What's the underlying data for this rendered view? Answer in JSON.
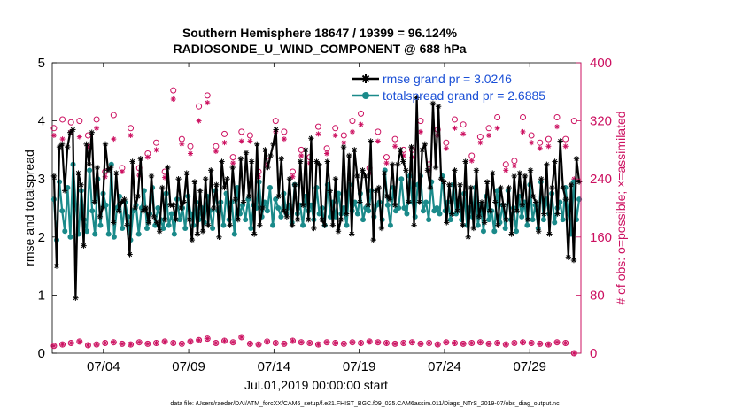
{
  "chart_data": {
    "type": "line",
    "title_line1": "Southern Hemisphere 18647 / 19399 = 96.124%",
    "title_line2": "RADIOSONDE_U_WIND_COMPONENT @ 688 hPa",
    "xlabel": "Jul.01,2019 00:00:00 start",
    "ylabel_left": "rmse and totalspread",
    "ylabel_right": "# of obs: o=possible; ×=assimilated",
    "footer": "data file: /Users/raeder/DAI/ATM_forcXX/CAM6_setup/f.e21.FHIST_BGC.f09_025.CAM6assim.011/Diags_NTrS_2019-07/obs_diag_output.nc",
    "xlim": [
      0.5,
      31.5
    ],
    "ylim_left": [
      0,
      5
    ],
    "ylim_right": [
      0,
      400
    ],
    "x_ticks": [
      3.5,
      8.5,
      13.5,
      18.5,
      23.5,
      28.5
    ],
    "x_tick_labels": [
      "07/04",
      "07/09",
      "07/14",
      "07/19",
      "07/24",
      "07/29"
    ],
    "y_ticks_left": [
      0,
      1,
      2,
      3,
      4,
      5
    ],
    "y_ticks_left_labels": [
      "0",
      "1",
      "2",
      "3",
      "4",
      "5"
    ],
    "y_ticks_right": [
      0,
      80,
      160,
      240,
      320,
      400
    ],
    "y_ticks_right_labels": [
      "0",
      "80",
      "160",
      "240",
      "320",
      "400"
    ],
    "colors": {
      "rmse": "#000000",
      "spread": "#1a8a8a",
      "obs": "#cc1060",
      "legend_text": "#1a4fd6"
    },
    "legend": [
      {
        "label": "rmse grand pr = 3.0246"
      },
      {
        "label": "totalspread grand pr = 2.6885"
      }
    ],
    "series": [
      {
        "name": "rmse",
        "values": [
          3.05,
          1.5,
          3.55,
          3.6,
          2.8,
          3.55,
          3.8,
          3.85,
          0.95,
          3.1,
          2.9,
          1.85,
          3.6,
          3.25,
          3.8,
          2.6,
          3.2,
          2.35,
          2.5,
          3.6,
          3.15,
          3.2,
          2.25,
          3.1,
          2.45,
          2.6,
          2.65,
          2.2,
          1.7,
          3.3,
          2.5,
          2.7,
          3.35,
          2.45,
          2.5,
          2.25,
          3.05,
          2.35,
          2.25,
          2.1,
          2.85,
          2.3,
          3.2,
          2.55,
          2.55,
          2.3,
          3.0,
          2.5,
          2.6,
          3.1,
          2.3,
          1.95,
          2.95,
          2.05,
          2.8,
          2.1,
          3.0,
          2.2,
          3.15,
          2.5,
          2.9,
          2.0,
          3.3,
          2.85,
          3.0,
          2.2,
          3.2,
          2.65,
          2.3,
          3.35,
          2.6,
          3.45,
          2.7,
          3.3,
          2.05,
          3.6,
          2.2,
          2.5,
          3.5,
          3.2,
          3.4,
          3.6,
          3.85,
          2.7,
          3.35,
          2.45,
          2.35,
          3.0,
          2.2,
          2.9,
          2.3,
          3.3,
          2.55,
          3.5,
          2.3,
          3.7,
          2.15,
          3.3,
          3.25,
          2.3,
          2.2,
          3.3,
          2.8,
          2.2,
          3.0,
          2.1,
          2.3,
          3.55,
          2.4,
          3.4,
          2.05,
          3.5,
          3.05,
          2.6,
          3.15,
          3.05,
          2.55,
          3.65,
          1.95,
          2.8,
          2.85,
          2.15,
          3.1,
          2.7,
          2.65,
          3.25,
          2.55,
          3.25,
          3.5,
          3.3,
          3.15,
          2.6,
          3.55,
          2.2,
          4.4,
          2.6,
          3.5,
          3.6,
          3.15,
          2.85,
          4.3,
          3.2,
          4.25,
          3.0,
          2.95,
          2.25,
          2.9,
          2.4,
          3.15,
          2.45,
          2.9,
          2.2,
          3.3,
          2.0,
          2.85,
          2.15,
          3.15,
          2.35,
          2.6,
          2.25,
          2.95,
          2.45,
          3.1,
          2.6,
          2.2,
          2.85,
          2.55,
          2.3,
          2.85,
          2.05,
          3.05,
          2.45,
          3.1,
          2.55,
          3.05,
          2.3,
          3.15,
          2.7,
          2.6,
          2.1,
          3.0,
          2.4,
          3.25,
          2.05,
          2.85,
          3.3,
          2.4,
          3.65,
          2.85,
          2.65,
          1.65,
          2.9,
          1.6,
          3.35,
          2.95
        ]
      },
      {
        "name": "totalspread",
        "values": [
          2.65,
          1.95,
          2.95,
          2.45,
          2.1,
          2.85,
          2.0,
          3.25,
          2.55,
          2.05,
          2.8,
          2.3,
          2.1,
          3.15,
          2.45,
          2.05,
          3.0,
          2.2,
          2.75,
          2.55,
          2.05,
          3.25,
          2.0,
          2.5,
          2.7,
          2.15,
          2.6,
          2.35,
          1.95,
          2.45,
          2.55,
          2.05,
          2.5,
          2.8,
          2.15,
          2.4,
          2.85,
          2.2,
          2.5,
          2.3,
          2.15,
          2.75,
          2.2,
          2.4,
          2.05,
          2.65,
          2.3,
          2.5,
          2.15,
          2.7,
          2.4,
          2.2,
          2.6,
          2.3,
          2.5,
          2.25,
          2.7,
          2.45,
          2.15,
          2.8,
          2.45,
          2.6,
          2.2,
          2.75,
          2.3,
          2.6,
          2.05,
          2.85,
          2.4,
          2.55,
          2.3,
          2.65,
          2.15,
          2.55,
          2.5,
          2.95,
          2.35,
          2.6,
          2.45,
          2.85,
          2.2,
          2.65,
          2.5,
          2.35,
          2.75,
          2.4,
          2.55,
          2.25,
          2.9,
          2.4,
          2.55,
          2.2,
          2.7,
          2.45,
          2.55,
          2.3,
          2.85,
          2.4,
          2.5,
          2.2,
          2.9,
          2.35,
          2.6,
          2.35,
          2.75,
          2.4,
          2.5,
          2.2,
          2.9,
          2.45,
          2.6,
          2.4,
          2.75,
          2.3,
          2.5,
          2.45,
          2.8,
          2.35,
          2.55,
          2.6,
          2.3,
          3.15,
          2.55,
          2.2,
          2.85,
          2.45,
          2.5,
          3.0,
          2.5,
          2.4,
          3.05,
          2.6,
          2.35,
          2.9,
          3.05,
          2.45,
          2.6,
          2.3,
          2.95,
          2.45,
          2.5,
          2.4,
          3.05,
          2.45,
          2.6,
          2.3,
          2.9,
          2.4,
          2.6,
          2.3,
          2.75,
          2.2,
          2.5,
          2.35,
          2.85,
          2.2,
          2.55,
          2.1,
          2.7,
          2.3,
          2.45,
          2.1,
          2.8,
          2.25,
          2.55,
          2.15,
          2.8,
          2.3,
          2.5,
          2.1,
          2.7,
          2.35,
          2.6,
          2.2,
          2.9,
          2.3,
          2.55,
          2.15,
          2.95,
          2.3,
          2.65,
          2.4,
          2.75,
          2.25,
          2.5,
          2.6,
          2.3,
          2.85,
          2.4,
          2.05,
          2.95,
          2.3,
          2.65
        ]
      },
      {
        "name": "obs_possible",
        "days": [
          0.6,
          1.1,
          1.6,
          2.1,
          2.6,
          3.1,
          3.6,
          4.1,
          4.6,
          5.1,
          5.6,
          6.1,
          6.6,
          7.1,
          7.6,
          8.1,
          8.6,
          9.1,
          9.6,
          10.1,
          10.6,
          11.1,
          11.6,
          12.1,
          12.6,
          13.1,
          13.6,
          14.1,
          14.6,
          15.1,
          15.6,
          16.1,
          16.6,
          17.1,
          17.6,
          18.1,
          18.6,
          19.1,
          19.6,
          20.1,
          20.6,
          21.1,
          21.6,
          22.1,
          22.6,
          23.1,
          23.6,
          24.1,
          24.6,
          25.1,
          25.6,
          26.1,
          26.6,
          27.1,
          27.6,
          28.1,
          28.6,
          29.1,
          29.6,
          30.1,
          30.6,
          31.1
        ],
        "values": [
          310,
          322,
          318,
          320,
          300,
          322,
          250,
          328,
          255,
          310,
          255,
          275,
          290,
          250,
          362,
          295,
          285,
          340,
          355,
          285,
          302,
          270,
          305,
          300,
          250,
          265,
          320,
          305,
          250,
          280,
          270,
          312,
          282,
          310,
          300,
          320,
          330,
          255,
          305,
          270,
          295,
          280,
          280,
          320,
          260,
          308,
          290,
          322,
          315,
          272,
          298,
          310,
          325,
          260,
          265,
          325,
          300,
          290,
          295,
          325,
          295,
          320
        ]
      },
      {
        "name": "obs_assimilated",
        "days": [
          0.6,
          1.1,
          1.6,
          2.1,
          2.6,
          3.1,
          3.6,
          4.1,
          4.6,
          5.1,
          5.6,
          6.1,
          6.6,
          7.1,
          7.6,
          8.1,
          8.6,
          9.1,
          9.6,
          10.1,
          10.6,
          11.1,
          11.6,
          12.1,
          12.6,
          13.1,
          13.6,
          14.1,
          14.6,
          15.1,
          15.6,
          16.1,
          16.6,
          17.1,
          17.6,
          18.1,
          18.6,
          19.1,
          19.6,
          20.1,
          20.6,
          21.1,
          21.6,
          22.1,
          22.6,
          23.1,
          23.6,
          24.1,
          24.6,
          25.1,
          25.6,
          26.1,
          26.6,
          27.1,
          27.6,
          28.1,
          28.6,
          29.1,
          29.6,
          30.1,
          30.6,
          31.1
        ],
        "values": [
          300,
          295,
          305,
          298,
          285,
          310,
          243,
          295,
          250,
          300,
          245,
          270,
          280,
          242,
          350,
          288,
          275,
          320,
          345,
          278,
          290,
          262,
          292,
          292,
          243,
          258,
          305,
          295,
          243,
          272,
          262,
          302,
          275,
          300,
          290,
          305,
          315,
          248,
          292,
          262,
          285,
          272,
          270,
          305,
          252,
          300,
          282,
          310,
          302,
          265,
          290,
          300,
          310,
          252,
          258,
          305,
          290,
          282,
          285,
          312,
          285,
          240
        ]
      },
      {
        "name": "obs_bottom",
        "values": [
          10,
          12,
          14,
          16,
          11,
          12,
          14,
          15,
          13,
          12,
          15,
          13,
          14,
          16,
          14,
          13,
          16,
          18,
          20,
          14,
          17,
          15,
          22,
          13,
          12,
          16,
          14,
          13,
          17,
          15,
          14,
          12,
          15,
          14,
          13,
          15,
          14,
          16,
          15,
          14,
          13,
          14,
          15,
          13,
          14,
          12,
          15,
          14,
          13,
          14,
          15,
          13,
          14,
          12,
          14,
          15,
          14,
          13,
          12,
          15,
          14,
          0
        ]
      }
    ]
  }
}
